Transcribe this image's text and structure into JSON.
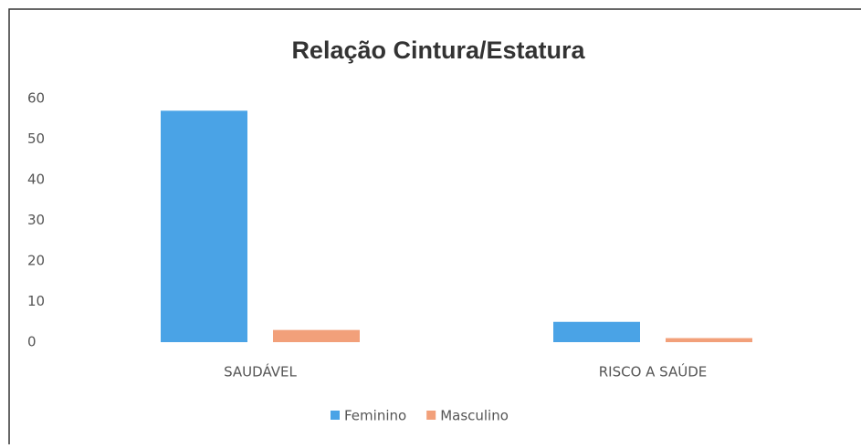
{
  "chart_data": {
    "type": "bar",
    "title": "Relação Cintura/Estatura",
    "categories": [
      "SAUDÁVEL",
      "RISCO A SAÚDE"
    ],
    "series": [
      {
        "name": "Feminino",
        "color": "#4aa3e6",
        "values": [
          57,
          5
        ]
      },
      {
        "name": "Masculino",
        "color": "#f2a07a",
        "values": [
          3,
          1
        ]
      }
    ],
    "ylim": [
      0,
      60
    ],
    "yticks": [
      0,
      10,
      20,
      30,
      40,
      50,
      60
    ],
    "legend": "bottom"
  }
}
